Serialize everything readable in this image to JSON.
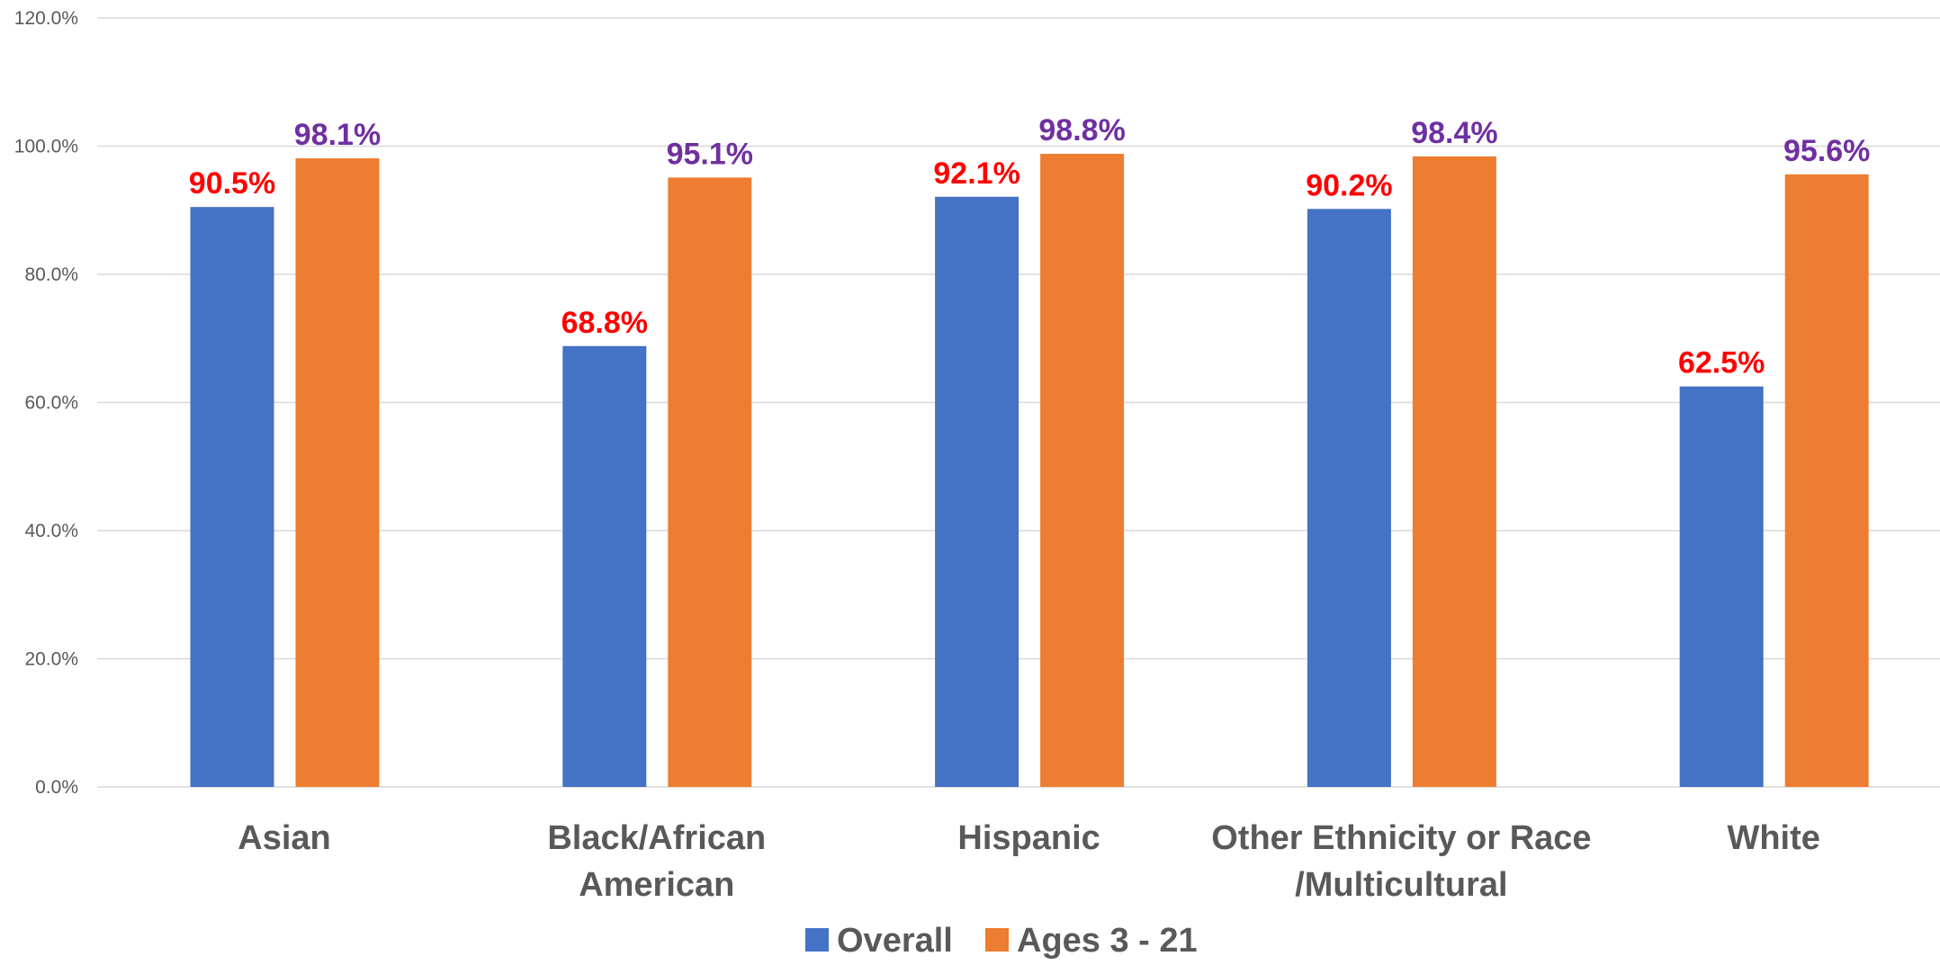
{
  "chart_data": {
    "type": "bar",
    "title": "",
    "xlabel": "",
    "ylabel": "",
    "ylim": [
      0,
      120
    ],
    "y_ticks": [
      "0.0%",
      "20.0%",
      "40.0%",
      "60.0%",
      "80.0%",
      "100.0%",
      "120.0%"
    ],
    "y_tick_values": [
      0,
      20,
      40,
      60,
      80,
      100,
      120
    ],
    "grid": true,
    "legend_position": "bottom",
    "categories": [
      [
        "Asian"
      ],
      [
        "Black/African",
        "American"
      ],
      [
        "Hispanic"
      ],
      [
        "Other Ethnicity or Race",
        "/Multicultural"
      ],
      [
        "White"
      ]
    ],
    "series": [
      {
        "name": "Overall",
        "color": "#4472C4",
        "label_color": "#FF0000",
        "values": [
          90.5,
          68.8,
          92.1,
          90.2,
          62.5
        ],
        "labels": [
          "90.5%",
          "68.8%",
          "92.1%",
          "90.2%",
          "62.5%"
        ]
      },
      {
        "name": "Ages 3 - 21",
        "color": "#ED7D31",
        "label_color": "#7030A0",
        "values": [
          98.1,
          95.1,
          98.8,
          98.4,
          95.6
        ],
        "labels": [
          "98.1%",
          "95.1%",
          "98.8%",
          "98.4%",
          "95.6%"
        ]
      }
    ]
  }
}
